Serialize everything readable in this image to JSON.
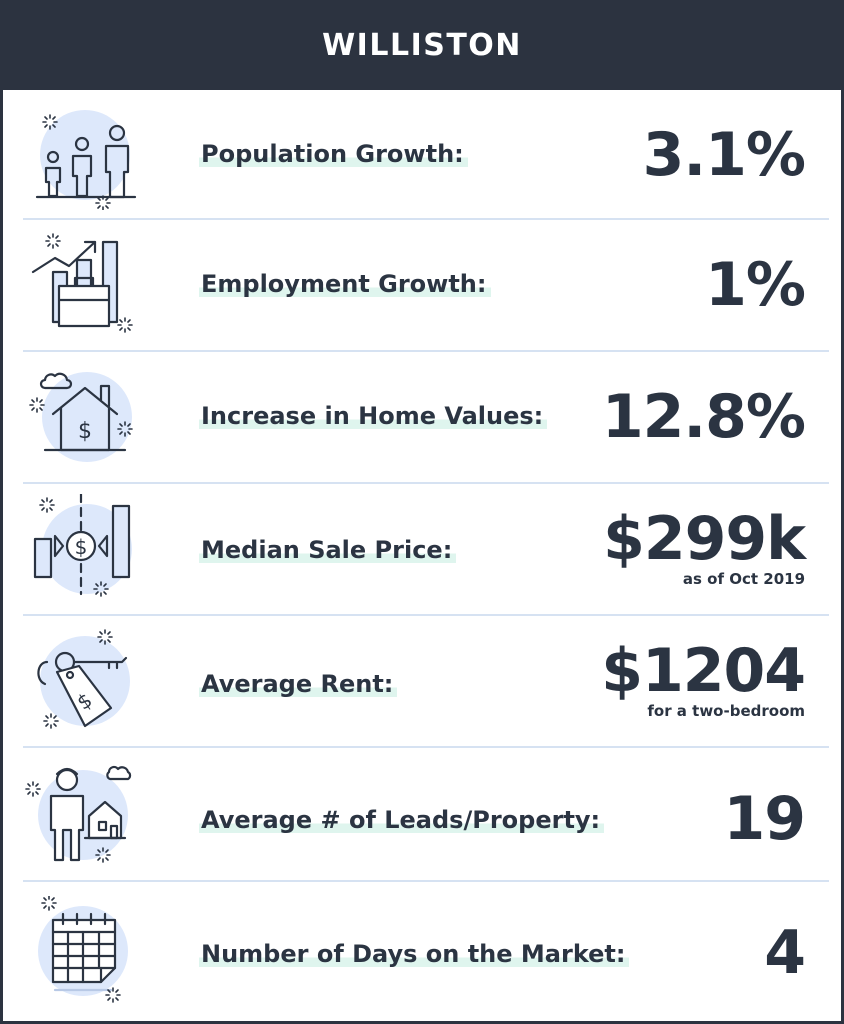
{
  "title": "WILLISTON",
  "colors": {
    "header_bg": "#2c3340",
    "panel_bg": "#ffffff",
    "text": "#2b3442",
    "divider": "#d6e2f2",
    "highlight": "#dff5ee",
    "icon_fill": "#dde8fb",
    "icon_stroke": "#2b3442"
  },
  "stats": [
    {
      "label": "Population Growth:",
      "value": "3.1%",
      "note": "",
      "icon": "family-icon"
    },
    {
      "label": "Employment Growth:",
      "value": "1%",
      "note": "",
      "icon": "briefcase-chart-icon"
    },
    {
      "label": "Increase in Home Values:",
      "value": "12.8%",
      "note": "",
      "icon": "house-dollar-icon"
    },
    {
      "label": "Median Sale Price:",
      "value": "$299k",
      "note": "as of Oct 2019",
      "icon": "price-bars-icon"
    },
    {
      "label": "Average Rent:",
      "value": "$1204",
      "note": "for a two-bedroom",
      "icon": "key-tag-icon"
    },
    {
      "label": "Average # of Leads/Property:",
      "value": "19",
      "note": "",
      "icon": "person-house-icon"
    },
    {
      "label": "Number of Days on the Market:",
      "value": "4",
      "note": "",
      "icon": "calendar-icon"
    }
  ]
}
